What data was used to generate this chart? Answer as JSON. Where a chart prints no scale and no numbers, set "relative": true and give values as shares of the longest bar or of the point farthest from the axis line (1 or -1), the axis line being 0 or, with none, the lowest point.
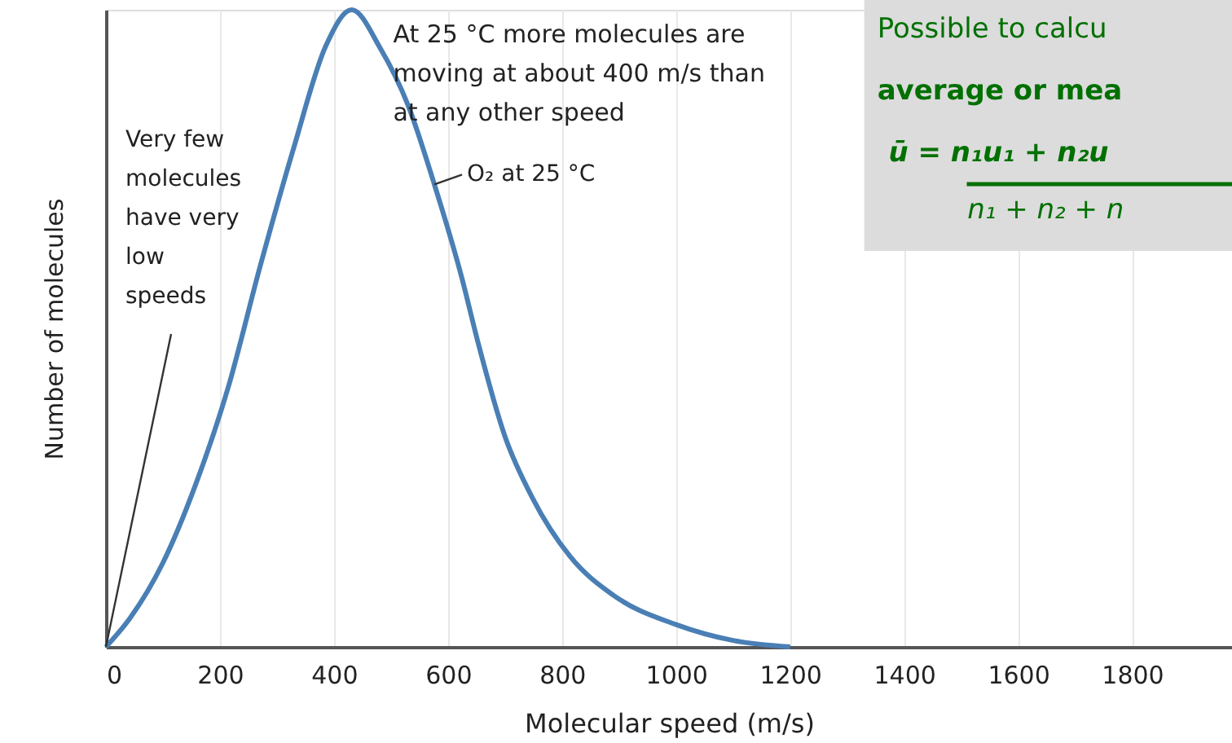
{
  "chart_data": {
    "type": "line",
    "relative": true,
    "xlabel": "Molecular speed (m/s)",
    "ylabel": "Number of molecules",
    "xlim": [
      0,
      1975
    ],
    "xticks": [
      0,
      200,
      400,
      600,
      800,
      1000,
      1200,
      1400,
      1600,
      1800
    ],
    "grid": "x",
    "series": [
      {
        "color": "#4a7fb5",
        "x": [
          0,
          43,
          100,
          157,
          214,
          271,
          329,
          386,
          431,
          481,
          530,
          576,
          624,
          652,
          700,
          748,
          814,
          890,
          1000,
          1100,
          1200
        ],
        "values": [
          0,
          0.046,
          0.132,
          0.254,
          0.406,
          0.599,
          0.782,
          0.944,
          1,
          0.94,
          0.85,
          0.726,
          0.58,
          0.48,
          0.33,
          0.234,
          0.142,
          0.081,
          0.035,
          0.01,
          0
        ]
      }
    ],
    "annotations": [
      "At 25 °C  more molecules are\nmoving at about 400 m/s than\nat any other speed",
      {
        "text": "Very few\nmolecules\nhave very\nlow\nspeeds",
        "x": 0,
        "y": 0
      },
      {
        "text": "O₂ at 25 °C",
        "x": 576,
        "y": 0.726
      },
      "Possible to calcu\naverage or mea",
      "ū  =   n₁u₁ + n₂u",
      "n₁ + n₂ + n"
    ]
  }
}
